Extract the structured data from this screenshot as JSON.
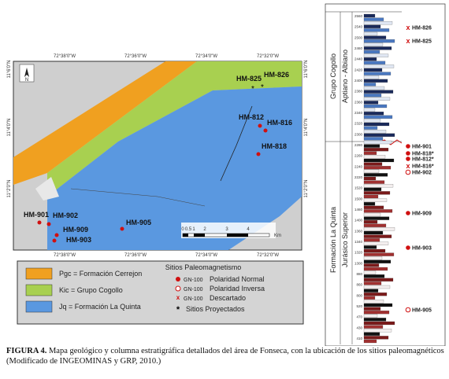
{
  "map": {
    "top_coords": [
      "72°38'0\"W",
      "72°36'0\"W",
      "72°34'0\"W",
      "72°32'0\"W"
    ],
    "bottom_coords": [
      "72°38'0\"W",
      "72°36'0\"W",
      "72°34'0\"W",
      "72°32'0\"W"
    ],
    "left_coords": [
      "11°6'0\"N",
      "11°4'0\"N",
      "11°2'0\"N"
    ],
    "right_coords": [
      "11°6'0\"N",
      "11°4'0\"N",
      "11°2'0\"N"
    ],
    "north": "N",
    "sites": [
      "HM-825",
      "HM-826",
      "HM-812",
      "HM-816",
      "HM-818",
      "HM-901",
      "HM-902",
      "HM-909",
      "HM-903",
      "HM-905"
    ],
    "scale": {
      "ticks": [
        "0",
        "0.5",
        "1",
        "2",
        "3",
        "4"
      ],
      "unit": "Km"
    }
  },
  "legend": {
    "units": [
      "Pgc = Formación Cerrejon",
      "Kic = Grupo Cogollo",
      "Jq = Formación La Quinta"
    ],
    "sites_title": "Sitios Paleomagnetismo",
    "symbols": [
      {
        "code": "GN-100",
        "text": "Polaridad Normal"
      },
      {
        "code": "GN-100",
        "text": "Polaridad Inversa"
      },
      {
        "code": "GN-100",
        "text": "Descartado"
      }
    ],
    "projected": "Sitios Proyectados"
  },
  "column": {
    "units": [
      {
        "name": "Grupo Cogollo",
        "age": "Aptiano - Albiano"
      },
      {
        "name": "Formación La Quinta",
        "age": "Jurásico Superior"
      }
    ],
    "sites": [
      "HM-826",
      "HM-825",
      "HM-901",
      "HM-818*",
      "HM-812*",
      "HM-816*",
      "HM-902",
      "HM-909",
      "HM-903",
      "HM-905"
    ],
    "depths": [
      "2560",
      "2540",
      "2500",
      "2460",
      "2440",
      "2420",
      "2400",
      "2380",
      "2360",
      "2340",
      "2320",
      "2300",
      "2280",
      "2260",
      "2240",
      "2220",
      "1520",
      "1500",
      "1460",
      "1400",
      "1360",
      "1340",
      "1320",
      "1300",
      "880",
      "860",
      "800",
      "520",
      "470",
      "430",
      "410"
    ]
  },
  "caption": {
    "label": "FIGURA 4.",
    "text": "Mapa geológico y columna estratigráfica detallados del área de Fonseca, con la ubicación de los sitios paleomagnéticos (Modificado de INGEOMINAS y GRP, 2010.)"
  }
}
